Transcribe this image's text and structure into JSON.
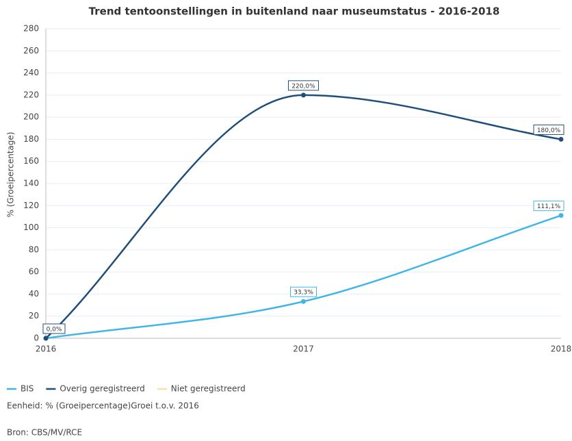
{
  "chart_data": {
    "type": "line",
    "title": "Trend tentoonstellingen in buitenland naar museumstatus - 2016-2018",
    "y_label": "% (Groeipercentage)",
    "categories": [
      "2016",
      "2017",
      "2018"
    ],
    "series": [
      {
        "name": "BIS",
        "color": "#41b6e6",
        "values": [
          0,
          33.3,
          111.1
        ],
        "value_labels": [
          null,
          "33,3%",
          "111,1%"
        ]
      },
      {
        "name": "Overig geregistreerd",
        "color": "#1f4e79",
        "values": [
          0,
          220,
          180
        ],
        "value_labels": [
          "0,0%",
          "220,0%",
          "180,0%"
        ]
      },
      {
        "name": "Niet geregistreerd",
        "color": "#f3e3a4",
        "values": [
          null,
          null,
          null
        ]
      }
    ],
    "ylim": [
      0,
      280
    ],
    "yticks": [
      0,
      20,
      40,
      60,
      80,
      100,
      120,
      140,
      160,
      180,
      200,
      220,
      240,
      260,
      280
    ],
    "grid": true,
    "unit_note": "Eenheid: % (Groeipercentage)Groei t.o.v. 2016",
    "source": "Bron: CBS/MV/RCE"
  }
}
